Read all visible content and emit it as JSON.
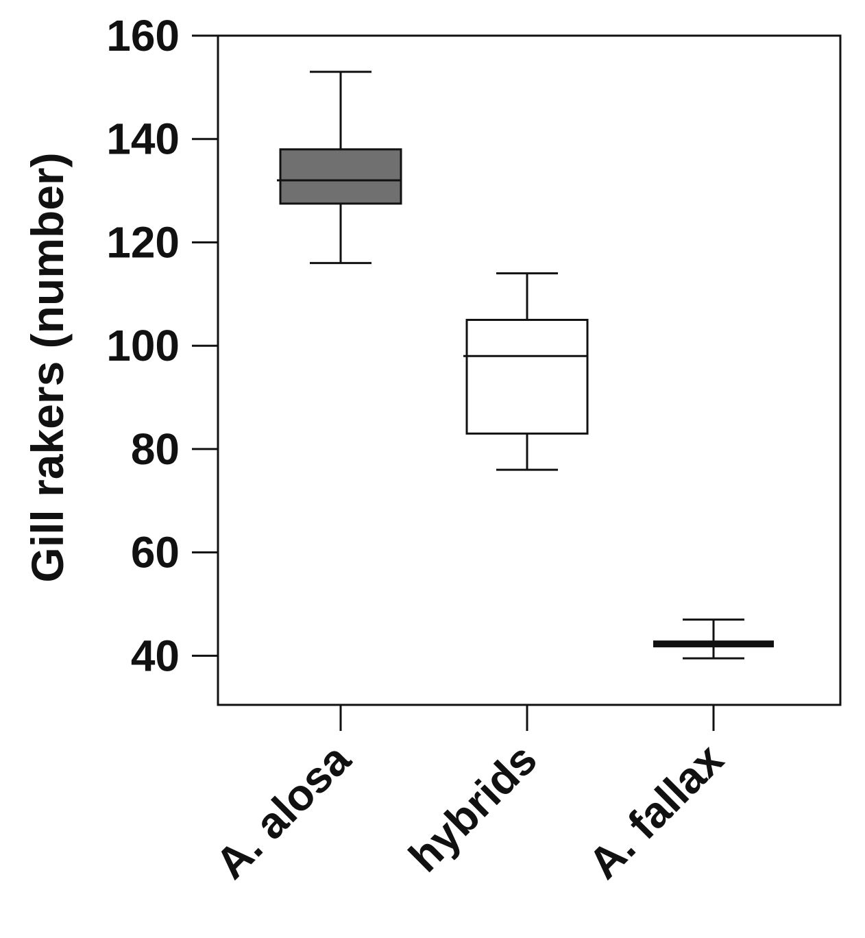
{
  "chart_data": {
    "type": "box",
    "ylabel": "Gill rakers (number)",
    "xlabel": "",
    "ylim": [
      30.5,
      160
    ],
    "yticks": [
      40,
      60,
      80,
      100,
      120,
      140,
      160
    ],
    "categories": [
      "A. alosa",
      "hybrids",
      "A. fallax"
    ],
    "boxes": [
      {
        "category": "A. alosa",
        "whisker_low": 116,
        "q1": 127.5,
        "median": 132,
        "q3": 138,
        "whisker_high": 153,
        "fill": "#707070"
      },
      {
        "category": "hybrids",
        "whisker_low": 76,
        "q1": 83,
        "median": 98,
        "q3": 105,
        "whisker_high": 114,
        "fill": "#ffffff"
      },
      {
        "category": "A. fallax",
        "whisker_low": 39.5,
        "q1": 42,
        "median": 42.3,
        "q3": 42.6,
        "whisker_high": 47,
        "fill": "#ffffff"
      }
    ],
    "grid": false,
    "legend": "none"
  }
}
